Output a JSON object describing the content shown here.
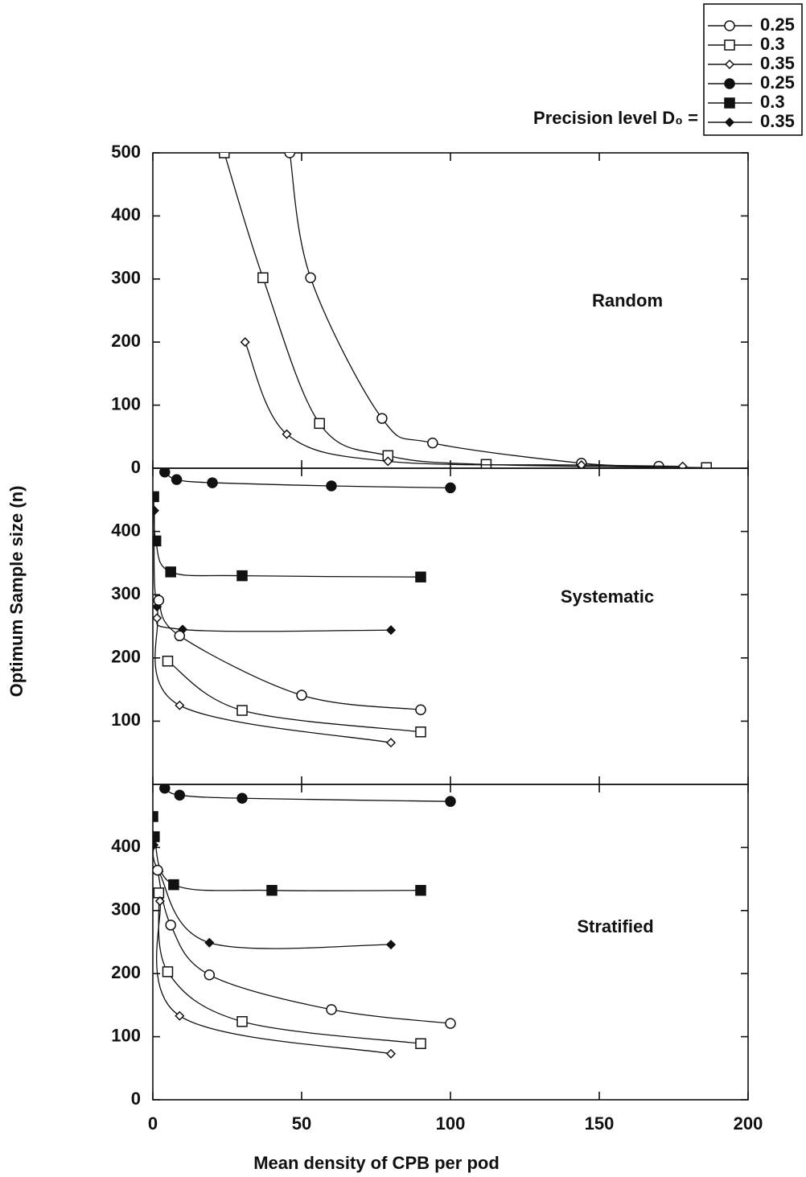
{
  "y_label": "Optimum Sample size (n)",
  "x_label": "Mean density of CPB per pod",
  "legend": {
    "title": "Precision level D₀ =",
    "items": [
      {
        "label": "0.25",
        "marker": "open-circle"
      },
      {
        "label": "0.3",
        "marker": "open-square"
      },
      {
        "label": "0.35",
        "marker": "open-diamond"
      },
      {
        "label": "0.25",
        "marker": "filled-circle"
      },
      {
        "label": "0.3",
        "marker": "filled-square"
      },
      {
        "label": "0.35",
        "marker": "filled-diamond"
      }
    ]
  },
  "chart_data": [
    {
      "type": "line",
      "title": "Random",
      "color": "#111111",
      "xlim": [
        0,
        200
      ],
      "xticks": [
        0,
        50,
        100,
        150,
        200
      ],
      "ylim": [
        0,
        500
      ],
      "yticks": [
        0,
        100,
        200,
        300,
        400,
        500
      ],
      "series": [
        {
          "marker": "open-circle",
          "x": [
            46,
            53,
            77,
            94,
            144,
            170
          ],
          "values": [
            500,
            302,
            79,
            40,
            8,
            3
          ]
        },
        {
          "marker": "open-square",
          "x": [
            24,
            37,
            56,
            79,
            112,
            186
          ],
          "values": [
            500,
            302,
            71,
            20,
            6,
            1
          ]
        },
        {
          "marker": "open-diamond",
          "x": [
            31,
            45,
            79,
            144,
            178
          ],
          "values": [
            200,
            54,
            11,
            5,
            3
          ]
        }
      ]
    },
    {
      "type": "line",
      "title": "Systematic",
      "color": "#111111",
      "xlim": [
        0,
        200
      ],
      "xticks": [
        0,
        50,
        100,
        150,
        200
      ],
      "ylim": [
        0,
        500
      ],
      "yticks": [
        100,
        200,
        300,
        400
      ],
      "series": [
        {
          "marker": "filled-circle",
          "x": [
            4,
            8,
            20,
            60,
            100
          ],
          "values": [
            494,
            482,
            477,
            472,
            469
          ]
        },
        {
          "marker": "filled-square",
          "x": [
            0.3,
            1,
            6,
            30,
            90
          ],
          "values": [
            455,
            385,
            336,
            330,
            328
          ]
        },
        {
          "marker": "filled-diamond",
          "x": [
            0.5,
            1.4,
            10,
            80
          ],
          "values": [
            433,
            281,
            245,
            244
          ]
        },
        {
          "marker": "open-circle",
          "x": [
            2,
            9,
            50,
            90
          ],
          "values": [
            291,
            235,
            141,
            118
          ]
        },
        {
          "marker": "open-square",
          "x": [
            5,
            30,
            90
          ],
          "values": [
            195,
            117,
            83
          ]
        },
        {
          "marker": "open-diamond",
          "x": [
            1.4,
            9,
            80
          ],
          "values": [
            263,
            125,
            66
          ]
        }
      ]
    },
    {
      "type": "line",
      "title": "Stratified",
      "color": "#111111",
      "xlim": [
        0,
        200
      ],
      "xticks": [
        0,
        50,
        100,
        150,
        200
      ],
      "ylim": [
        0,
        500
      ],
      "yticks": [
        0,
        100,
        200,
        300,
        400
      ],
      "series": [
        {
          "marker": "filled-circle",
          "x": [
            4,
            9,
            30,
            100
          ],
          "values": [
            494,
            483,
            478,
            473
          ]
        },
        {
          "marker": "filled-square",
          "x": [
            0,
            0.5,
            7,
            40,
            90
          ],
          "values": [
            449,
            417,
            341,
            332,
            332
          ]
        },
        {
          "marker": "filled-diamond",
          "x": [
            0.3,
            2,
            19,
            80
          ],
          "values": [
            404,
            362,
            249,
            246
          ]
        },
        {
          "marker": "open-circle",
          "x": [
            1.6,
            6,
            19,
            60,
            100
          ],
          "values": [
            364,
            277,
            198,
            143,
            121
          ]
        },
        {
          "marker": "open-square",
          "x": [
            2,
            5,
            30,
            90
          ],
          "values": [
            328,
            203,
            124,
            89
          ]
        },
        {
          "marker": "open-diamond",
          "x": [
            2.4,
            9,
            80
          ],
          "values": [
            315,
            133,
            73
          ]
        }
      ]
    }
  ]
}
